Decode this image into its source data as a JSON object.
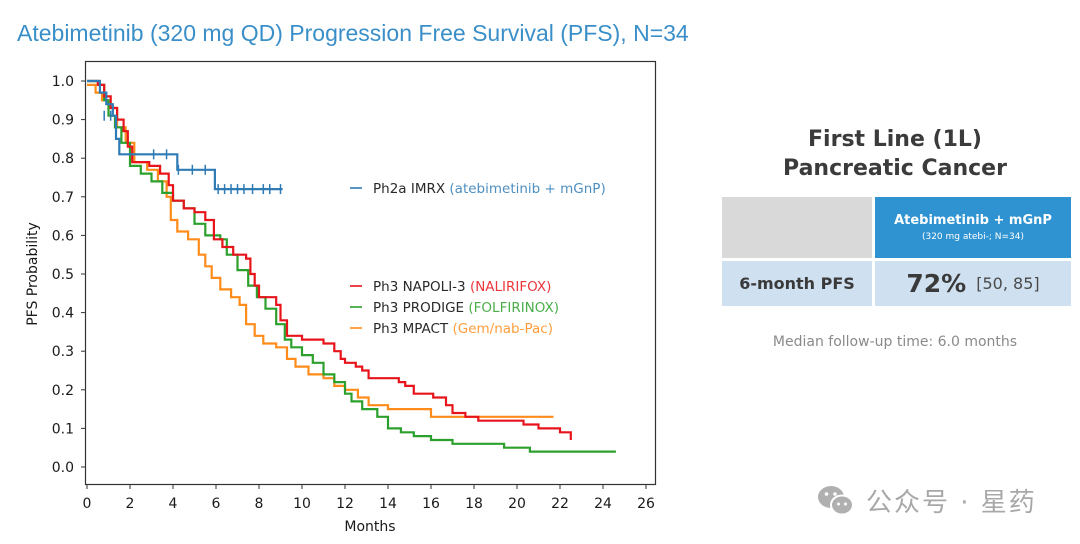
{
  "title": "Atebimetinib (320 mg QD) Progression Free Survival (PFS), N=34",
  "panel": {
    "title_line1": "First Line (1L)",
    "title_line2": "Pancreatic Cancer",
    "column_header": "Atebimetinib + mGnP",
    "column_subheader": "(320 mg atebi-; N=34)",
    "row_label": "6-month PFS",
    "row_value": "72%",
    "row_ci": "[50, 85]",
    "followup": "Median follow-up time:  6.0 months",
    "colors": {
      "header": "#2f93d1",
      "row": "#cfe0f0",
      "blank": "#d9d9d9"
    }
  },
  "watermark": {
    "icon": "wechat-icon",
    "text": "公众号 · 星药"
  },
  "chart_data": {
    "type": "line",
    "subtype": "kaplan-meier-step",
    "title": "Atebimetinib (320 mg QD) Progression Free Survival (PFS), N=34",
    "xlabel": "Months",
    "ylabel": "PFS Probability",
    "xlim": [
      0,
      26
    ],
    "ylim": [
      -0.05,
      1.03
    ],
    "xticks": [
      "0",
      "2",
      "4",
      "6",
      "8",
      "10",
      "12",
      "14",
      "16",
      "18",
      "20",
      "22",
      "24",
      "26"
    ],
    "yticks": [
      "0.0",
      "0.1",
      "0.2",
      "0.3",
      "0.4",
      "0.5",
      "0.6",
      "0.7",
      "0.8",
      "0.9",
      "1.0"
    ],
    "grid": false,
    "series": [
      {
        "name": "Ph2a IMRX",
        "regimen": "(atebimetinib + mGnP)",
        "color": "#2e7bb6",
        "steps": [
          [
            0,
            1.0
          ],
          [
            0.6,
            0.97
          ],
          [
            0.9,
            0.94
          ],
          [
            1.2,
            0.91
          ],
          [
            1.35,
            0.85
          ],
          [
            1.5,
            0.81
          ],
          [
            4.2,
            0.77
          ],
          [
            5.95,
            0.72
          ],
          [
            9.1,
            0.72
          ]
        ],
        "censored": [
          [
            0.8,
            0.91
          ],
          [
            1.1,
            0.91
          ],
          [
            3.1,
            0.81
          ],
          [
            3.7,
            0.81
          ],
          [
            4.25,
            0.77
          ],
          [
            4.9,
            0.77
          ],
          [
            5.5,
            0.77
          ],
          [
            6.1,
            0.72
          ],
          [
            6.4,
            0.72
          ],
          [
            6.7,
            0.72
          ],
          [
            7.0,
            0.72
          ],
          [
            7.3,
            0.72
          ],
          [
            7.7,
            0.72
          ],
          [
            8.2,
            0.72
          ],
          [
            8.5,
            0.72
          ],
          [
            9.0,
            0.72
          ]
        ]
      },
      {
        "name": "Ph3 NAPOLI-3",
        "regimen": "(NALIRIFOX)",
        "color": "#e8141b",
        "steps": [
          [
            0,
            1.0
          ],
          [
            0.5,
            0.99
          ],
          [
            0.8,
            0.96
          ],
          [
            1.1,
            0.93
          ],
          [
            1.4,
            0.9
          ],
          [
            1.7,
            0.87
          ],
          [
            1.9,
            0.83
          ],
          [
            2.1,
            0.79
          ],
          [
            2.9,
            0.78
          ],
          [
            3.4,
            0.76
          ],
          [
            3.8,
            0.73
          ],
          [
            4.0,
            0.69
          ],
          [
            4.5,
            0.67
          ],
          [
            5.0,
            0.66
          ],
          [
            5.5,
            0.64
          ],
          [
            5.9,
            0.59
          ],
          [
            6.3,
            0.57
          ],
          [
            6.8,
            0.55
          ],
          [
            7.4,
            0.54
          ],
          [
            7.6,
            0.5
          ],
          [
            7.8,
            0.47
          ],
          [
            8.0,
            0.44
          ],
          [
            8.8,
            0.42
          ],
          [
            9.0,
            0.38
          ],
          [
            9.3,
            0.34
          ],
          [
            10.0,
            0.33
          ],
          [
            11.0,
            0.32
          ],
          [
            11.5,
            0.3
          ],
          [
            11.8,
            0.28
          ],
          [
            12.0,
            0.27
          ],
          [
            12.5,
            0.26
          ],
          [
            12.8,
            0.25
          ],
          [
            13.1,
            0.23
          ],
          [
            14.5,
            0.22
          ],
          [
            14.8,
            0.21
          ],
          [
            15.2,
            0.19
          ],
          [
            16.1,
            0.18
          ],
          [
            16.7,
            0.16
          ],
          [
            17.0,
            0.14
          ],
          [
            17.6,
            0.13
          ],
          [
            18.2,
            0.12
          ],
          [
            20.3,
            0.11
          ],
          [
            21.0,
            0.1
          ],
          [
            22.0,
            0.09
          ],
          [
            22.5,
            0.07
          ]
        ]
      },
      {
        "name": "Ph3 PRODIGE",
        "regimen": "(FOLFIRINOX)",
        "color": "#2ca02c",
        "steps": [
          [
            0,
            1.0
          ],
          [
            0.6,
            0.99
          ],
          [
            0.8,
            0.95
          ],
          [
            1.0,
            0.91
          ],
          [
            1.3,
            0.88
          ],
          [
            1.6,
            0.84
          ],
          [
            2.0,
            0.78
          ],
          [
            2.5,
            0.76
          ],
          [
            3.0,
            0.74
          ],
          [
            3.5,
            0.71
          ],
          [
            4.0,
            0.69
          ],
          [
            4.5,
            0.67
          ],
          [
            5.0,
            0.63
          ],
          [
            5.5,
            0.6
          ],
          [
            6.2,
            0.59
          ],
          [
            6.5,
            0.55
          ],
          [
            7.0,
            0.51
          ],
          [
            7.5,
            0.47
          ],
          [
            7.9,
            0.44
          ],
          [
            8.3,
            0.41
          ],
          [
            8.8,
            0.37
          ],
          [
            9.2,
            0.33
          ],
          [
            9.5,
            0.31
          ],
          [
            10.0,
            0.29
          ],
          [
            10.5,
            0.27
          ],
          [
            11.0,
            0.24
          ],
          [
            11.5,
            0.22
          ],
          [
            12.0,
            0.19
          ],
          [
            12.3,
            0.17
          ],
          [
            12.8,
            0.15
          ],
          [
            13.5,
            0.13
          ],
          [
            14.0,
            0.1
          ],
          [
            14.6,
            0.09
          ],
          [
            15.2,
            0.08
          ],
          [
            16.0,
            0.07
          ],
          [
            17.0,
            0.06
          ],
          [
            19.4,
            0.05
          ],
          [
            20.6,
            0.04
          ],
          [
            24.6,
            0.04
          ]
        ]
      },
      {
        "name": "Ph3 MPACT",
        "regimen": "(Gem/nab-Pac)",
        "color": "#ff8c1a",
        "steps": [
          [
            0,
            0.99
          ],
          [
            0.4,
            0.97
          ],
          [
            0.7,
            0.95
          ],
          [
            1.0,
            0.93
          ],
          [
            1.4,
            0.88
          ],
          [
            1.8,
            0.84
          ],
          [
            2.2,
            0.79
          ],
          [
            2.8,
            0.77
          ],
          [
            3.3,
            0.74
          ],
          [
            3.7,
            0.7
          ],
          [
            3.9,
            0.64
          ],
          [
            4.2,
            0.61
          ],
          [
            4.7,
            0.59
          ],
          [
            5.2,
            0.55
          ],
          [
            5.5,
            0.52
          ],
          [
            5.8,
            0.49
          ],
          [
            6.2,
            0.46
          ],
          [
            6.7,
            0.44
          ],
          [
            7.1,
            0.42
          ],
          [
            7.4,
            0.37
          ],
          [
            7.8,
            0.34
          ],
          [
            8.2,
            0.32
          ],
          [
            8.8,
            0.31
          ],
          [
            9.3,
            0.28
          ],
          [
            9.7,
            0.26
          ],
          [
            10.3,
            0.24
          ],
          [
            11.0,
            0.23
          ],
          [
            11.5,
            0.21
          ],
          [
            12.0,
            0.2
          ],
          [
            12.6,
            0.18
          ],
          [
            13.1,
            0.16
          ],
          [
            14.0,
            0.15
          ],
          [
            16.0,
            0.13
          ],
          [
            21.7,
            0.13
          ]
        ]
      }
    ],
    "legend": [
      {
        "series": "Ph2a IMRX",
        "regimen": "(atebimetinib + mGnP)",
        "position": "upper-right-inside"
      },
      {
        "series": "Ph3 NAPOLI-3",
        "regimen": "(NALIRIFOX)",
        "position": "middle-right-inside"
      },
      {
        "series": "Ph3 PRODIGE",
        "regimen": "(FOLFIRINOX)",
        "position": "middle-right-inside"
      },
      {
        "series": "Ph3 MPACT",
        "regimen": "(Gem/nab-Pac)",
        "position": "middle-right-inside"
      }
    ]
  }
}
